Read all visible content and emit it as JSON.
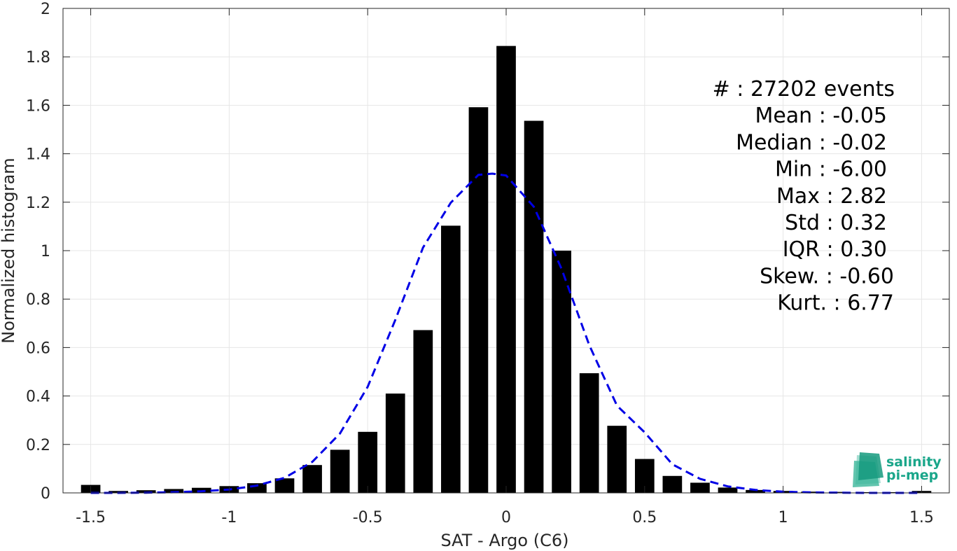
{
  "chart_data": {
    "type": "bar",
    "xlabel": "SAT - Argo (C6)",
    "ylabel": "Normalized histogram",
    "xlim": [
      -1.6,
      1.6
    ],
    "ylim": [
      0,
      2
    ],
    "x_ticks": [
      "-1.5",
      "-1",
      "-0.5",
      "0",
      "0.5",
      "1",
      "1.5"
    ],
    "x_tick_values": [
      -1.5,
      -1,
      -0.5,
      0,
      0.5,
      1,
      1.5
    ],
    "y_ticks": [
      "0",
      "0.2",
      "0.4",
      "0.6",
      "0.8",
      "1",
      "1.2",
      "1.4",
      "1.6",
      "1.8",
      "2"
    ],
    "y_tick_values": [
      0,
      0.2,
      0.4,
      0.6,
      0.8,
      1.0,
      1.2,
      1.4,
      1.6,
      1.8,
      2.0
    ],
    "grid": true,
    "bar_color": "#000000",
    "bars": {
      "x": [
        -1.5,
        -1.4,
        -1.3,
        -1.2,
        -1.1,
        -1.0,
        -0.9,
        -0.8,
        -0.7,
        -0.6,
        -0.5,
        -0.4,
        -0.3,
        -0.2,
        -0.1,
        0.0,
        0.1,
        0.2,
        0.3,
        0.4,
        0.5,
        0.6,
        0.7,
        0.8,
        0.9,
        1.0,
        1.1,
        1.2,
        1.3,
        1.4,
        1.5
      ],
      "values": [
        0.033,
        0.008,
        0.011,
        0.016,
        0.021,
        0.028,
        0.04,
        0.06,
        0.115,
        0.178,
        0.252,
        0.41,
        0.672,
        1.103,
        1.592,
        1.845,
        1.536,
        1.0,
        0.494,
        0.277,
        0.14,
        0.07,
        0.042,
        0.022,
        0.012,
        0.008,
        0.005,
        0.004,
        0.003,
        0.003,
        0.008
      ]
    },
    "fit": {
      "style": "dashed",
      "color": "#0000e6",
      "x": [
        -1.5,
        -1.4,
        -1.3,
        -1.2,
        -1.1,
        -1.0,
        -0.9,
        -0.8,
        -0.7,
        -0.6,
        -0.5,
        -0.4,
        -0.3,
        -0.2,
        -0.1,
        -0.05,
        0.0,
        0.1,
        0.2,
        0.3,
        0.4,
        0.5,
        0.6,
        0.7,
        0.8,
        0.9,
        1.0,
        1.1,
        1.2,
        1.3,
        1.4,
        1.5
      ],
      "y": [
        0.0,
        0.0,
        0.001,
        0.003,
        0.007,
        0.014,
        0.03,
        0.062,
        0.128,
        0.245,
        0.438,
        0.715,
        1.013,
        1.198,
        1.313,
        1.318,
        1.31,
        1.181,
        0.925,
        0.61,
        0.36,
        0.25,
        0.118,
        0.058,
        0.027,
        0.012,
        0.005,
        0.002,
        0.001,
        0.0,
        0.0,
        0.0
      ]
    },
    "stats": [
      "#  : 27202 events",
      "Mean : -0.05",
      "Median : -0.02",
      "Min : -6.00",
      "Max : 2.82",
      "Std : 0.32",
      "IQR : 0.30",
      "Skew. : -0.60",
      "Kurt. : 6.77"
    ]
  },
  "logo": {
    "line1": "salinity",
    "line2": "pi-mep",
    "color": "#1aa68a"
  }
}
